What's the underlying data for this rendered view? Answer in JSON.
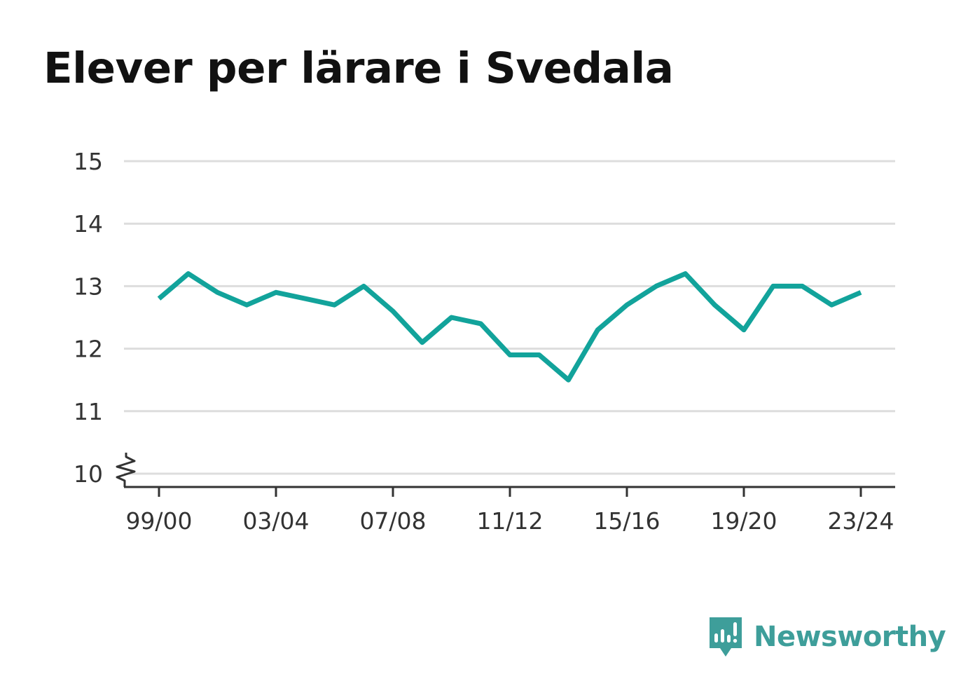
{
  "colors": {
    "line": "#12A39B",
    "brand": "#3E9E9A",
    "grid": "#DDDDDD",
    "axis": "#333333"
  },
  "brand": {
    "name": "Newsworthy",
    "icon": "newsworthy-logo-icon"
  },
  "chart_data": {
    "type": "line",
    "title": "Elever per lärare i Svedala",
    "xlabel": "",
    "ylabel": "",
    "x": [
      "99/00",
      "00/01",
      "01/02",
      "02/03",
      "03/04",
      "04/05",
      "05/06",
      "06/07",
      "07/08",
      "08/09",
      "09/10",
      "10/11",
      "11/12",
      "12/13",
      "13/14",
      "14/15",
      "15/16",
      "16/17",
      "17/18",
      "18/19",
      "19/20",
      "20/21",
      "21/22",
      "22/23",
      "23/24"
    ],
    "x_tick_labels": [
      "99/00",
      "03/04",
      "07/08",
      "11/12",
      "15/16",
      "19/20",
      "23/24"
    ],
    "series": [
      {
        "values": [
          12.8,
          13.2,
          12.9,
          12.7,
          12.9,
          12.8,
          12.7,
          13.0,
          12.6,
          12.1,
          12.5,
          12.4,
          11.9,
          11.9,
          11.5,
          12.3,
          12.7,
          13.0,
          13.2,
          12.7,
          12.3,
          13.0,
          13.0,
          12.7,
          12.9
        ]
      }
    ],
    "y_ticks": [
      10,
      11,
      12,
      13,
      14,
      15
    ],
    "ylim": [
      10,
      15
    ],
    "y_axis_break": true,
    "grid": true,
    "legend": "none"
  }
}
